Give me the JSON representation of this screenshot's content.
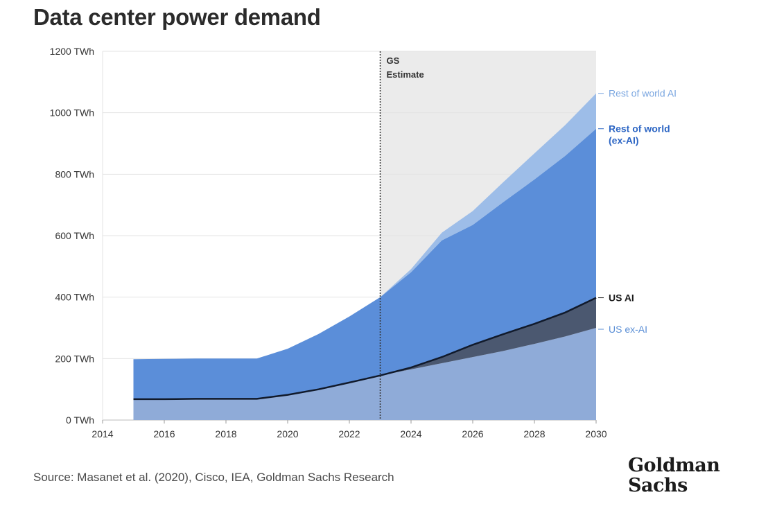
{
  "title": "Data center power demand",
  "source": "Source: Masanet et al. (2020), Cisco, IEA, Goldman Sachs Research",
  "logo": {
    "line1": "Goldman",
    "line2": "Sachs"
  },
  "chart_data": {
    "type": "area",
    "stacked": true,
    "x": [
      2015,
      2016,
      2017,
      2018,
      2019,
      2020,
      2021,
      2022,
      2023,
      2024,
      2025,
      2026,
      2027,
      2028,
      2029,
      2030
    ],
    "xticks": [
      2014,
      2016,
      2018,
      2020,
      2022,
      2024,
      2026,
      2028,
      2030
    ],
    "xlim": [
      2014,
      2030
    ],
    "ylim": [
      0,
      1200
    ],
    "yticks": [
      {
        "value": 0,
        "label": "0 TWh"
      },
      {
        "value": 200,
        "label": "200 TWh"
      },
      {
        "value": 400,
        "label": "400 TWh"
      },
      {
        "value": 600,
        "label": "600 TWh"
      },
      {
        "value": 800,
        "label": "800 TWh"
      },
      {
        "value": 1000,
        "label": "1000 TWh"
      },
      {
        "value": 1200,
        "label": "1200 TWh"
      }
    ],
    "grid": "horizontal",
    "estimate_start": 2023,
    "estimate_label": [
      "GS",
      "Estimate"
    ],
    "series": [
      {
        "name": "US ex-AI",
        "color": "#8fabd8",
        "label_color": "#5b8fd6",
        "values": [
          68,
          68,
          69,
          69,
          69,
          82,
          100,
          122,
          145,
          165,
          185,
          205,
          225,
          248,
          272,
          300
        ]
      },
      {
        "name": "US AI",
        "color": "#4b5870",
        "label_color": "#1c1c1c",
        "values": [
          0,
          0,
          0,
          0,
          0,
          0,
          0,
          0,
          0,
          6,
          20,
          40,
          55,
          65,
          78,
          98
        ]
      },
      {
        "name": "Rest of world (ex-AI)",
        "color": "#5b8ed9",
        "label_color": "#2d66c4",
        "values": [
          130,
          131,
          131,
          131,
          131,
          150,
          180,
          215,
          255,
          310,
          380,
          390,
          430,
          470,
          510,
          550
        ]
      },
      {
        "name": "Rest of world AI",
        "color": "#9dbde8",
        "label_color": "#7aa6e0",
        "values": [
          0,
          0,
          0,
          0,
          0,
          0,
          0,
          0,
          0,
          10,
          25,
          45,
          65,
          85,
          100,
          115
        ]
      }
    ],
    "us_total_line": [
      68,
      68,
      69,
      69,
      69,
      82,
      100,
      122,
      145,
      171,
      205,
      245,
      280,
      313,
      350,
      398
    ]
  }
}
